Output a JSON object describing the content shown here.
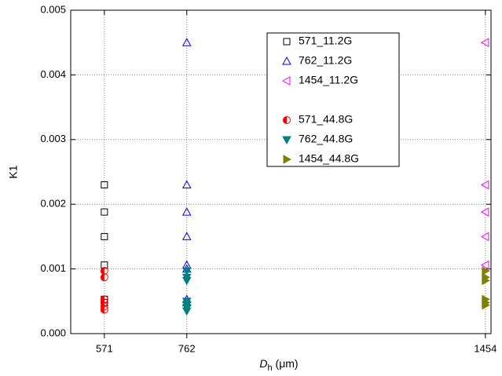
{
  "chart_data": {
    "type": "scatter",
    "ylabel": "K1",
    "xlabel_parts": [
      "D",
      "h",
      " (μm)"
    ],
    "xlim": [
      493,
      1467
    ],
    "xticks": [
      571,
      762,
      1454
    ],
    "ylim": [
      0,
      0.005
    ],
    "yticks": [
      {
        "value": 0,
        "label": "0.000"
      },
      {
        "value": 0.001,
        "label": "0.001"
      },
      {
        "value": 0.002,
        "label": "0.002"
      },
      {
        "value": 0.003,
        "label": "0.003"
      },
      {
        "value": 0.004,
        "label": "0.004"
      },
      {
        "value": 0.005,
        "label": "0.005"
      }
    ],
    "grid": true,
    "series": [
      {
        "name": "571_11.2G",
        "marker": "square",
        "color": "#000000",
        "x": [
          571,
          571,
          571,
          571,
          571,
          571
        ],
        "values": [
          0.0023,
          0.00188,
          0.0015,
          0.00106,
          0.00053,
          0.00048
        ]
      },
      {
        "name": "762_11.2G",
        "marker": "triangle-up",
        "color": "#0000ff",
        "x": [
          762,
          762,
          762,
          762,
          762,
          762,
          762,
          762
        ],
        "values": [
          0.0045,
          0.0023,
          0.00188,
          0.0015,
          0.00106,
          0.001,
          0.00053,
          0.00048
        ]
      },
      {
        "name": "1454_11.2G",
        "marker": "triangle-left",
        "color": "#ff00ff",
        "x": [
          1454,
          1454,
          1454,
          1454,
          1454
        ],
        "values": [
          0.0045,
          0.0023,
          0.00188,
          0.0015,
          0.00106
        ]
      },
      {
        "name": "571_44.8G",
        "marker": "half-circle",
        "color": "#ff0000",
        "x": [
          571,
          571,
          571,
          571,
          571,
          571
        ],
        "values": [
          0.00097,
          0.00087,
          0.00053,
          0.00048,
          0.00042,
          0.00037
        ]
      },
      {
        "name": "762_44.8G",
        "marker": "triangle-down",
        "color": "#008080",
        "x": [
          762,
          762,
          762,
          762,
          762,
          762,
          762
        ],
        "values": [
          0.00097,
          0.00087,
          0.00082,
          0.0005,
          0.00045,
          0.0004,
          0.00035
        ]
      },
      {
        "name": "1454_44.8G",
        "marker": "triangle-right",
        "color": "#808000",
        "x": [
          1454,
          1454,
          1454,
          1454,
          1454,
          1454
        ],
        "values": [
          0.00097,
          0.00087,
          0.00082,
          0.00053,
          0.00048,
          0.00044
        ]
      }
    ]
  }
}
